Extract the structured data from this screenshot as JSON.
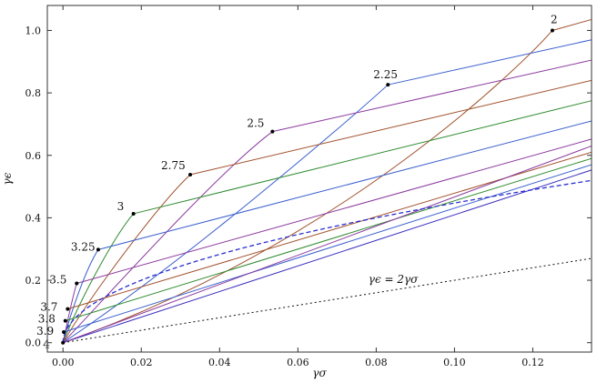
{
  "chart_data": {
    "type": "line",
    "title": "",
    "xlabel": "γσ",
    "ylabel": "γϵ",
    "xlim": [
      -0.004,
      0.135
    ],
    "ylim": [
      -0.03,
      1.08
    ],
    "x_ticks": [
      {
        "v": 0.0,
        "label": "0.00"
      },
      {
        "v": 0.02,
        "label": "0.02"
      },
      {
        "v": 0.04,
        "label": "0.04"
      },
      {
        "v": 0.06,
        "label": "0.06"
      },
      {
        "v": 0.08,
        "label": "0.08"
      },
      {
        "v": 0.1,
        "label": "0.10"
      },
      {
        "v": 0.12,
        "label": "0.12"
      }
    ],
    "y_ticks": [
      {
        "v": 0.0,
        "label": "0.0"
      },
      {
        "v": 0.2,
        "label": "0.2"
      },
      {
        "v": 0.4,
        "label": "0.4"
      },
      {
        "v": 0.6,
        "label": "0.6"
      },
      {
        "v": 0.8,
        "label": "0.8"
      },
      {
        "v": 1.0,
        "label": "1.0"
      }
    ],
    "grid": false,
    "envelope_color": "#2a2fd0",
    "points": [
      {
        "label": "2",
        "x": 0.125,
        "y": 1.0
      },
      {
        "label": "2.25",
        "x": 0.083,
        "y": 0.826
      },
      {
        "label": "2.5",
        "x": 0.0535,
        "y": 0.676
      },
      {
        "label": "2.75",
        "x": 0.0325,
        "y": 0.538
      },
      {
        "label": "3",
        "x": 0.018,
        "y": 0.413
      },
      {
        "label": "3.25",
        "x": 0.009,
        "y": 0.298
      },
      {
        "label": "3.5",
        "x": 0.0035,
        "y": 0.19
      },
      {
        "label": "3.7",
        "x": 0.0012,
        "y": 0.108
      },
      {
        "label": "3.8",
        "x": 0.0006,
        "y": 0.07
      },
      {
        "label": "3.9",
        "x": 0.0002,
        "y": 0.034
      },
      {
        "label": "4",
        "x": 0.0,
        "y": 0.0
      }
    ],
    "series": [
      {
        "color": "#a0522d",
        "p0": [
          0.125,
          1.0
        ],
        "p1": [
          0.135,
          1.035
        ],
        "curve": [
          [
            0.118,
            0.9
          ],
          [
            0.072,
            0.32
          ],
          [
            0.0,
            0.0
          ]
        ]
      },
      {
        "color": "#3a5fcd",
        "p0": [
          0.083,
          0.826
        ],
        "p1": [
          0.135,
          0.97
        ],
        "curve": [
          [
            0.072,
            0.7
          ],
          [
            0.03,
            0.25
          ],
          [
            0.0,
            0.0
          ]
        ]
      },
      {
        "color": "#8b3a9e",
        "p0": [
          0.0535,
          0.676
        ],
        "p1": [
          0.135,
          0.905
        ],
        "curve": [
          [
            0.04,
            0.55
          ],
          [
            0.015,
            0.2
          ],
          [
            0.0,
            0.0
          ]
        ]
      },
      {
        "color": "#a0522d",
        "p0": [
          0.0325,
          0.538
        ],
        "p1": [
          0.135,
          0.84
        ],
        "curve": [
          [
            0.025,
            0.45
          ],
          [
            0.008,
            0.17
          ],
          [
            0.0,
            0.0
          ]
        ]
      },
      {
        "color": "#2e8b2e",
        "p0": [
          0.018,
          0.413
        ],
        "p1": [
          0.135,
          0.775
        ],
        "curve": [
          [
            0.013,
            0.34
          ],
          [
            0.004,
            0.13
          ],
          [
            0.0,
            0.0
          ]
        ]
      },
      {
        "color": "#3a5fcd",
        "p0": [
          0.009,
          0.298
        ],
        "p1": [
          0.135,
          0.71
        ],
        "curve": [
          [
            0.006,
            0.24
          ],
          [
            0.002,
            0.1
          ],
          [
            0.0,
            0.0
          ]
        ]
      },
      {
        "color": "#8b3a9e",
        "p0": [
          0.0035,
          0.19
        ],
        "p1": [
          0.135,
          0.652
        ],
        "curve": [
          [
            0.0025,
            0.15
          ],
          [
            0.001,
            0.06
          ],
          [
            0.0,
            0.0
          ]
        ]
      },
      {
        "color": "#a0522d",
        "p0": [
          0.0012,
          0.108
        ],
        "p1": [
          0.135,
          0.61
        ]
      },
      {
        "color": "#2e8b2e",
        "p0": [
          0.0006,
          0.07
        ],
        "p1": [
          0.135,
          0.59
        ]
      },
      {
        "color": "#3a5fcd",
        "p0": [
          0.0002,
          0.034
        ],
        "p1": [
          0.135,
          0.57
        ]
      },
      {
        "color": "#3a2fbf",
        "p0": [
          0.0,
          0.0
        ],
        "p1": [
          0.135,
          0.553
        ]
      },
      {
        "color": "#8b3a9e",
        "p0": [
          0.0,
          0.0
        ],
        "p1": [
          0.135,
          0.63
        ],
        "curve": [
          [
            0.0,
            0.0
          ],
          [
            0.0,
            0.0
          ],
          [
            0.0,
            0.0
          ]
        ]
      }
    ],
    "dotted_line": {
      "label": "γϵ = 2γσ",
      "x": [
        0.0,
        0.135
      ],
      "y": [
        0.0,
        0.27
      ],
      "label_x": 0.078,
      "label_y": 0.192
    }
  }
}
